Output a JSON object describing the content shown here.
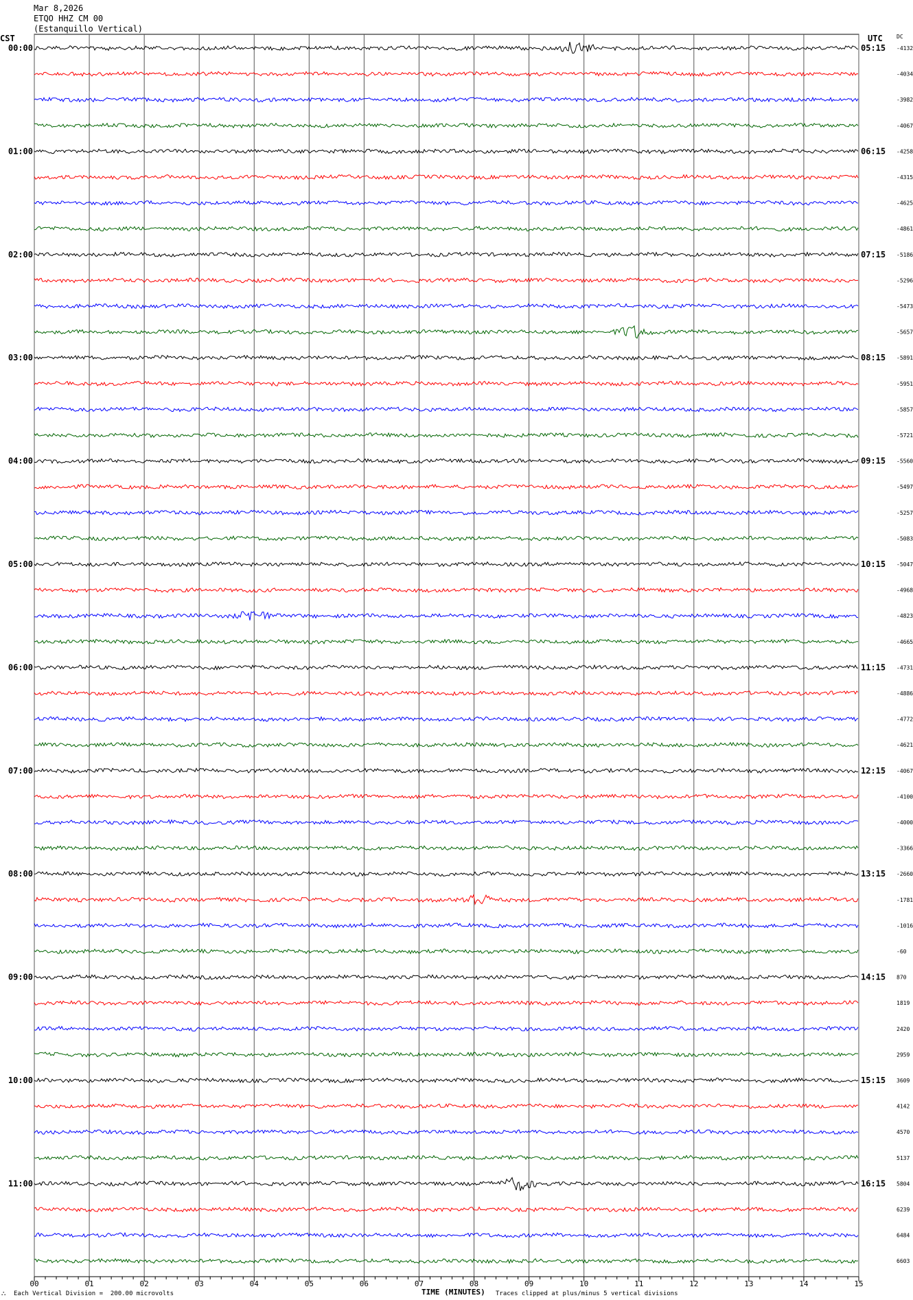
{
  "header": {
    "date": "Mar 8,2026",
    "station": "ETQO HHZ CM 00",
    "site": "(Estanquillo Vertical)"
  },
  "left_tz": "CST",
  "right_tz": "UTC",
  "dc_header": "DC",
  "footer": {
    "mark": "⛬",
    "scale": "Each Vertical Division =  200.00 microvolts",
    "clip": "Traces clipped at plus/minus 5 vertical divisions"
  },
  "chart_data": {
    "type": "line",
    "xlabel": "TIME (MINUTES)",
    "xlim": [
      0,
      15
    ],
    "x_ticks": [
      "00",
      "01",
      "02",
      "03",
      "04",
      "05",
      "06",
      "07",
      "08",
      "09",
      "10",
      "11",
      "12",
      "13",
      "14",
      "15"
    ],
    "trace_colors": [
      "#000000",
      "#ff0000",
      "#0000ff",
      "#006400"
    ],
    "left_labels": [
      "00:00",
      "01:00",
      "02:00",
      "03:00",
      "04:00",
      "05:00",
      "06:00",
      "07:00",
      "08:00",
      "09:00",
      "10:00",
      "11:00"
    ],
    "right_labels": [
      "05:15",
      "06:15",
      "07:15",
      "08:15",
      "09:15",
      "10:15",
      "11:15",
      "12:15",
      "13:15",
      "14:15",
      "15:15",
      "16:15"
    ],
    "dc_offsets": [
      "-4132",
      "-4034",
      "-3982",
      "-4067",
      "-4258",
      "-4315",
      "-4625",
      "-4861",
      "-5186",
      "-5296",
      "-5473",
      "-5657",
      "-5891",
      "-5951",
      "-5857",
      "-5721",
      "-5560",
      "-5497",
      "-5257",
      "-5083",
      "-5047",
      "-4968",
      "-4823",
      "-4665",
      "-4731",
      "-4886",
      "-4772",
      "-4621",
      "-4067",
      "-4100",
      "-4000",
      "-3366",
      "-2660",
      "-1781",
      "-1016",
      "-60",
      "870",
      "1819",
      "2420",
      "2959",
      "3609",
      "4142",
      "4570",
      "5137",
      "5804",
      "6239",
      "6484",
      "6603"
    ]
  }
}
